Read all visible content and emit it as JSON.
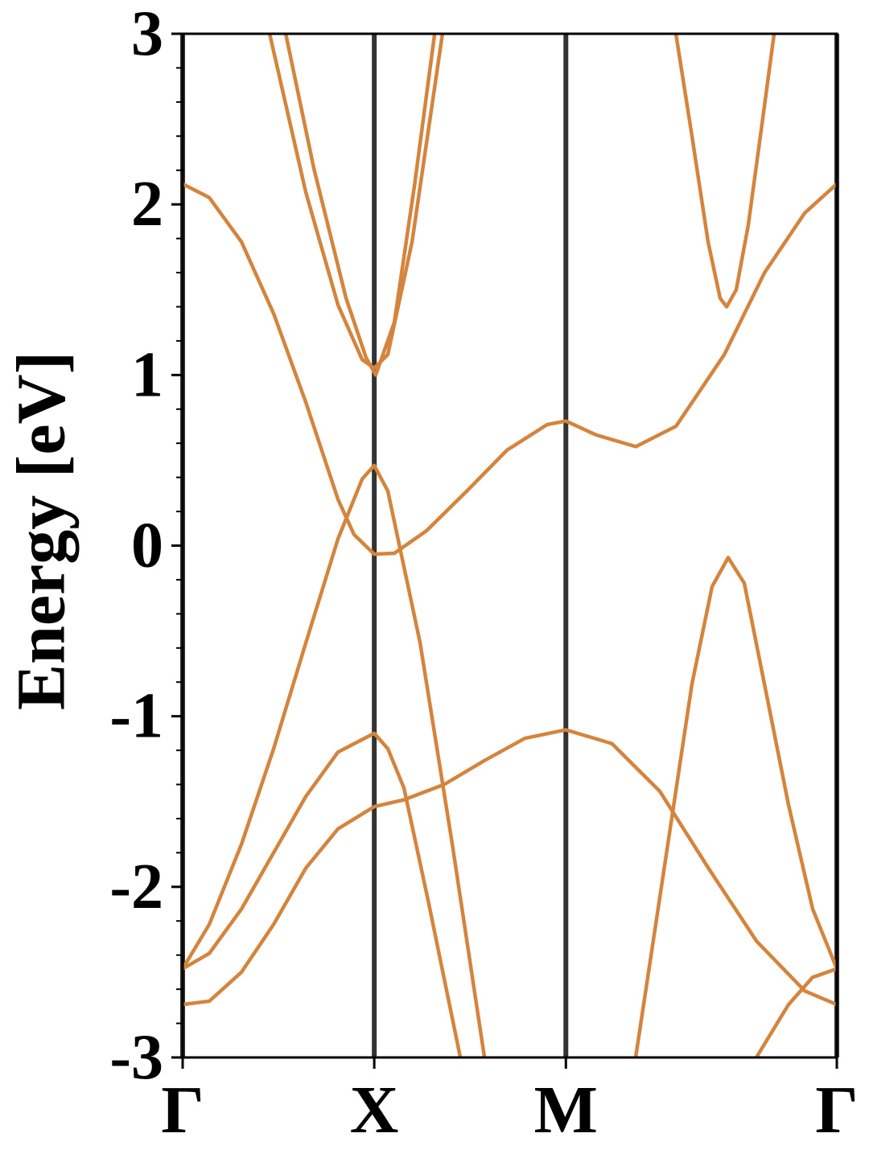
{
  "chart_data": {
    "type": "line",
    "ylabel": "Energy [eV]",
    "xlim": [
      0,
      3.414
    ],
    "ylim": [
      -3,
      3
    ],
    "xticks": [
      {
        "value": 0,
        "label": "Γ"
      },
      {
        "value": 1,
        "label": "X"
      },
      {
        "value": 2,
        "label": "M"
      },
      {
        "value": 3.414,
        "label": "Γ"
      }
    ],
    "yticks": [
      -3,
      -2,
      -1,
      0,
      1,
      2,
      3
    ],
    "minor_yticks": [
      -2.8,
      -2.6,
      -2.4,
      -2.2,
      -1.8,
      -1.6,
      -1.4,
      -1.2,
      -0.8,
      -0.6,
      -0.4,
      -0.2,
      0.2,
      0.4,
      0.6,
      0.8,
      1.2,
      1.4,
      1.6,
      1.8,
      2.2,
      2.4,
      2.6,
      2.8
    ],
    "vlines_color": "#333333",
    "series": [
      {
        "color": "#d4843c",
        "x": [
          0,
          0.139,
          0.307,
          0.475,
          0.643,
          0.811,
          0.895,
          1.0,
          1.105,
          1.273,
          1.483,
          1.693,
          1.903,
          2.0,
          2.155,
          2.365,
          2.575,
          2.827,
          3.037,
          3.247,
          3.414
        ],
        "values": [
          2.12,
          2.04,
          1.78,
          1.36,
          0.84,
          0.27,
          0.064,
          -0.05,
          -0.045,
          0.087,
          0.32,
          0.56,
          0.71,
          0.73,
          0.65,
          0.58,
          0.7,
          1.12,
          1.6,
          1.95,
          2.12
        ]
      },
      {
        "color": "#d4843c",
        "x": [
          0,
          0.139,
          0.307,
          0.475,
          0.643,
          0.811,
          0.937,
          1.0,
          1.071,
          1.239,
          1.407,
          1.575
        ],
        "values": [
          -2.48,
          -2.22,
          -1.75,
          -1.19,
          -0.57,
          0.04,
          0.39,
          0.47,
          0.32,
          -0.57,
          -1.75,
          -3
        ]
      },
      {
        "color": "#d4843c",
        "x": [
          0,
          0.139,
          0.307,
          0.475,
          0.643,
          0.811,
          1.0,
          1.071,
          1.155,
          1.281,
          1.449
        ],
        "values": [
          -2.48,
          -2.39,
          -2.13,
          -1.8,
          -1.47,
          -1.21,
          -1.1,
          -1.19,
          -1.42,
          -2.08,
          -3
        ]
      },
      {
        "color": "#d4843c",
        "x": [
          0,
          0.139,
          0.307,
          0.475,
          0.643,
          0.811,
          1.0,
          1.155,
          1.365,
          1.575,
          1.785,
          2.0,
          2.24,
          2.49,
          2.744,
          2.996,
          3.247,
          3.414
        ],
        "values": [
          -2.69,
          -2.67,
          -2.5,
          -2.22,
          -1.89,
          -1.66,
          -1.53,
          -1.49,
          -1.4,
          -1.26,
          -1.13,
          -1.08,
          -1.16,
          -1.44,
          -1.89,
          -2.32,
          -2.61,
          -2.69
        ]
      },
      {
        "color": "#d4843c",
        "x": [
          2.364,
          2.532,
          2.658,
          2.763,
          2.847,
          2.931,
          3.036,
          3.162,
          3.288,
          3.414
        ],
        "values": [
          -3,
          -1.75,
          -0.81,
          -0.24,
          -0.07,
          -0.22,
          -0.81,
          -1.52,
          -2.13,
          -2.48
        ]
      },
      {
        "color": "#d4843c",
        "x": [
          2.994,
          3.162,
          3.288,
          3.414
        ],
        "values": [
          -3,
          -2.69,
          -2.53,
          -2.48
        ]
      },
      {
        "color": "#d4843c",
        "x": [
          2.574,
          2.658,
          2.742,
          2.805,
          2.839,
          2.889,
          2.952,
          3.015,
          3.087
        ],
        "values": [
          3,
          2.4,
          1.78,
          1.45,
          1.4,
          1.5,
          1.88,
          2.4,
          3
        ]
      },
      {
        "color": "#d4843c",
        "x": [
          0.454,
          0.643,
          0.811,
          0.937,
          1.0,
          1.071,
          1.197,
          1.356
        ],
        "values": [
          3,
          2.07,
          1.41,
          1.09,
          1.04,
          1.12,
          1.78,
          3
        ]
      },
      {
        "color": "#d4843c",
        "x": [
          0.538,
          0.685,
          0.853,
          0.958,
          1.008,
          1.105,
          1.21,
          1.315
        ],
        "values": [
          3,
          2.21,
          1.45,
          1.1,
          1.0,
          1.31,
          2.11,
          3
        ]
      }
    ]
  }
}
